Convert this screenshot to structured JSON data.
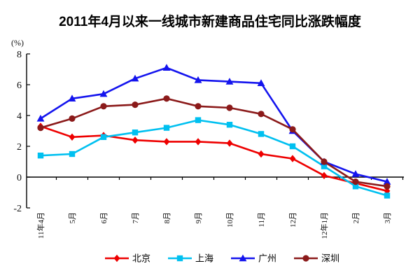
{
  "chart": {
    "title": "2011年4月以来一线城市新建商品住宅同比涨跌幅度",
    "unit_label": "(%)"
  },
  "chart_data": {
    "type": "line",
    "title": "2011年4月以来一线城市新建商品住宅同比涨跌幅度",
    "ylabel": "(%)",
    "xlabel": "",
    "ylim": [
      -2,
      8
    ],
    "yticks": [
      8,
      6,
      4,
      2,
      0,
      -2
    ],
    "grid": false,
    "legend_position": "bottom",
    "categories": [
      "11年4月",
      "5月",
      "6月",
      "7月",
      "8月",
      "9月",
      "10月",
      "11月",
      "12月",
      "12年1月",
      "2月",
      "3月"
    ],
    "series": [
      {
        "name": "北京",
        "id": "beijing",
        "color": "#ee0000",
        "marker": "diamond",
        "values": [
          3.3,
          2.6,
          2.7,
          2.4,
          2.3,
          2.3,
          2.2,
          1.5,
          1.2,
          0.1,
          -0.4,
          -0.9
        ]
      },
      {
        "name": "上海",
        "id": "shanghai",
        "color": "#00c0f0",
        "marker": "square",
        "values": [
          1.4,
          1.5,
          2.6,
          2.9,
          3.2,
          3.7,
          3.4,
          2.8,
          2.0,
          0.7,
          -0.6,
          -1.2
        ]
      },
      {
        "name": "广州",
        "id": "guangzhou",
        "color": "#1414ee",
        "marker": "triangle",
        "values": [
          3.8,
          5.1,
          5.4,
          6.4,
          7.1,
          6.3,
          6.2,
          6.1,
          3.0,
          1.0,
          0.2,
          -0.3
        ]
      },
      {
        "name": "深圳",
        "id": "shenzhen",
        "color": "#8b1a1a",
        "marker": "circle",
        "values": [
          3.2,
          3.8,
          4.6,
          4.7,
          5.1,
          4.6,
          4.5,
          4.1,
          3.1,
          1.0,
          -0.3,
          -0.6
        ]
      }
    ],
    "axis_color": "#000000",
    "text_color": "#111111"
  }
}
